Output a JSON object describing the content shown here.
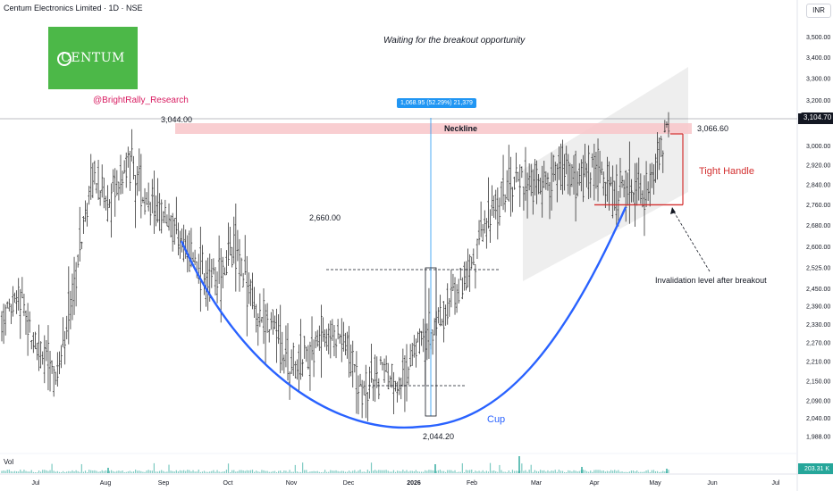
{
  "header": {
    "title": "Centum Electronics Limited · 1D · NSE",
    "currency": "INR",
    "note": "Waiting for the breakout opportunity"
  },
  "branding": {
    "logo_text": "CENTUM",
    "handle": "@BrightRally_Research",
    "brand_color": "#4cb848",
    "handle_color": "#d81b60"
  },
  "annotations": {
    "neckline": "Neckline",
    "tight_handle": "Tight Handle",
    "cup": "Cup",
    "invalidation": "Invalidation level after breakout",
    "level_3044": "3,044.00",
    "level_2660": "2,660.00",
    "level_2044": "2,044.20",
    "level_3066": "3,066.60",
    "measure": "1,068.95 (52.29%) 21,379"
  },
  "colors": {
    "cup": "#2962ff",
    "neckline_zone": "#f8c6c9",
    "handle": "#d32f2f",
    "channel": "#e0e0e0",
    "measure": "#2196f3",
    "candle": "#333333",
    "volume": "#26a69a"
  },
  "volume": {
    "label": "Vol",
    "last": "203.31 K"
  },
  "chart_data": {
    "type": "candlestick",
    "title": "Centum Electronics Limited · 1D · NSE",
    "xlabel": "",
    "ylabel": "",
    "scale": "log",
    "ylim": [
      1960,
      3620
    ],
    "y_ticks": [
      "3,500.00",
      "3,400.00",
      "3,300.00",
      "3,200.00",
      "3,000.00",
      "2,920.00",
      "2,840.00",
      "2,760.00",
      "2,680.00",
      "2,600.00",
      "2,525.00",
      "2,450.00",
      "2,390.00",
      "2,330.00",
      "2,270.00",
      "2,210.00",
      "2,150.00",
      "2,090.00",
      "2,040.00",
      "1,988.00"
    ],
    "x_ticks": [
      "Jul",
      "Aug",
      "Sep",
      "Oct",
      "Nov",
      "Dec",
      "2026",
      "Feb",
      "Mar",
      "Apr",
      "May",
      "Jun",
      "Jul"
    ],
    "last_price": "3,104.70",
    "key_levels": {
      "cup_left_high": 3044.0,
      "cup_bottom_low": 2044.2,
      "mid_high": 2660.0,
      "neckline_top": 3066.6,
      "neckline_bottom": 3000.0,
      "handle_low": 2760.0
    },
    "trend": [
      [
        "Jul",
        2350
      ],
      [
        "Jul",
        2420
      ],
      [
        "Aug",
        2250
      ],
      [
        "Aug",
        2150
      ],
      [
        "Aug",
        2450
      ],
      [
        "Sep",
        2900
      ],
      [
        "Sep",
        2750
      ],
      [
        "Sep",
        2950
      ],
      [
        "Oct",
        2780
      ],
      [
        "Oct",
        2720
      ],
      [
        "Oct",
        2600
      ],
      [
        "Nov",
        2520
      ],
      [
        "Nov",
        2480
      ],
      [
        "Nov",
        2600
      ],
      [
        "Nov",
        2400
      ],
      [
        "Dec",
        2320
      ],
      [
        "Dec",
        2200
      ],
      [
        "Dec",
        2240
      ],
      [
        "Dec",
        2300
      ],
      [
        "2026",
        2280
      ],
      [
        "2026",
        2130
      ],
      [
        "2026",
        2180
      ],
      [
        "2026",
        2120
      ],
      [
        "Feb",
        2250
      ],
      [
        "Feb",
        2320
      ],
      [
        "Feb",
        2420
      ],
      [
        "Feb",
        2520
      ],
      [
        "Mar",
        2700
      ],
      [
        "Mar",
        2820
      ],
      [
        "Mar",
        2880
      ],
      [
        "Mar",
        2840
      ],
      [
        "Apr",
        2900
      ],
      [
        "Apr",
        2860
      ],
      [
        "Apr",
        2920
      ],
      [
        "Apr",
        2780
      ],
      [
        "May",
        2850
      ],
      [
        "May",
        2820
      ],
      [
        "May",
        3104.7
      ]
    ],
    "volume_pulses": [
      0.05,
      0.1,
      0.3,
      0.2,
      0.9,
      0.35,
      0.15
    ]
  }
}
